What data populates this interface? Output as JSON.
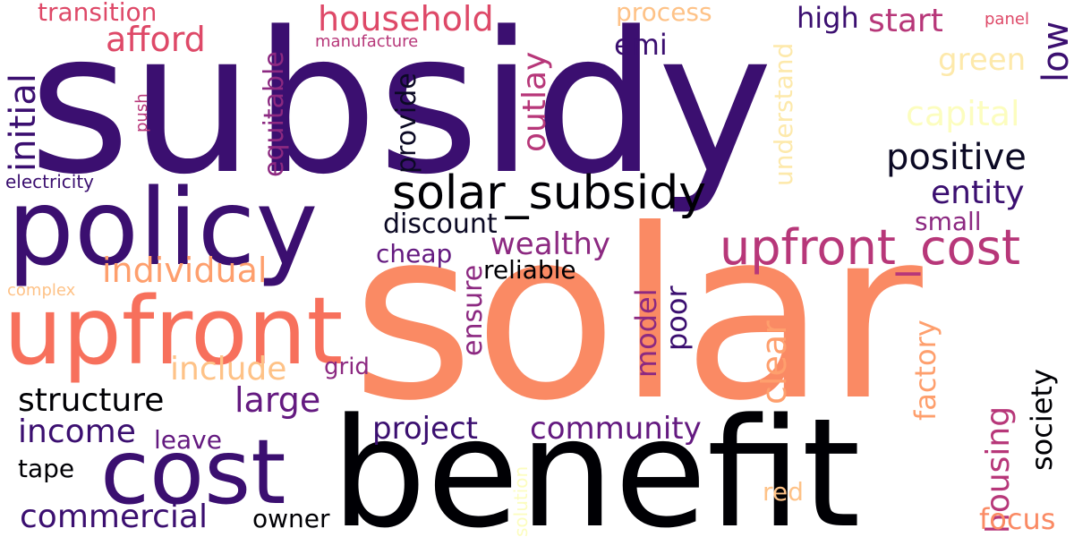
{
  "words": [
    "subsidy",
    "solar",
    "benefit",
    "policy",
    "upfront",
    "cost",
    "solar_subsidy",
    "upfront_cost",
    "positive",
    "entity",
    "individual",
    "household",
    "afford",
    "transition",
    "initial",
    "equitable",
    "outlay",
    "emi",
    "provide",
    "understand",
    "process",
    "high",
    "start",
    "low",
    "panel",
    "green",
    "capital",
    "manufacture",
    "push",
    "electricity",
    "discount",
    "small",
    "wealthy",
    "cheap",
    "reliable",
    "ensure",
    "model",
    "poor",
    "complex",
    "include",
    "grid",
    "structure",
    "large",
    "clear",
    "factory",
    "housing",
    "society",
    "income",
    "leave",
    "project",
    "community",
    "tape",
    "solution",
    "red",
    "commercial",
    "owner",
    "focus"
  ]
}
